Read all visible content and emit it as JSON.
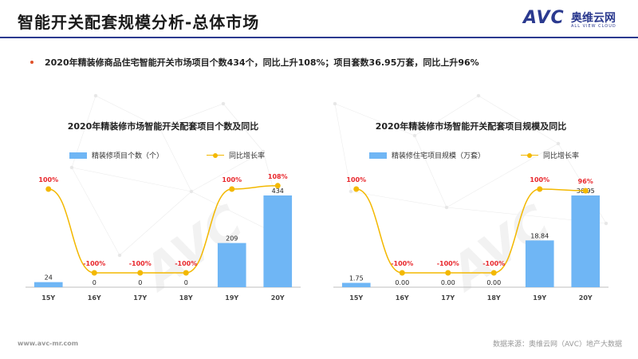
{
  "header": {
    "title": "智能开关配套规模分析-总体市场",
    "logo_avc": "AVC",
    "logo_cn": "奥维云网",
    "logo_sub": "ALL VIEW CLOUD"
  },
  "summary": "2020年精装修商品住宅智能开关市场项目个数434个，同比上升108%；项目套数36.95万套，同比上升96%",
  "colors": {
    "bar": "#6fb6f5",
    "line": "#f3b800",
    "rate_label": "#e8262b",
    "accent": "#2b3a8f"
  },
  "chart_data": [
    {
      "type": "bar",
      "title": "2020年精装修市场智能开关配套项目个数及同比",
      "categories": [
        "15Y",
        "16Y",
        "17Y",
        "18Y",
        "19Y",
        "20Y"
      ],
      "series": [
        {
          "name": "精装修项目个数（个）",
          "type": "bar",
          "values": [
            24,
            0,
            0,
            0,
            209,
            434
          ],
          "labels": [
            "24",
            "0",
            "0",
            "0",
            "209",
            "434"
          ]
        },
        {
          "name": "同比增长率",
          "type": "line",
          "values": [
            100,
            -100,
            -100,
            -100,
            100,
            108
          ],
          "labels": [
            "100%",
            "-100%",
            "-100%",
            "-100%",
            "100%",
            "108%"
          ]
        }
      ],
      "legend": "top",
      "grid": false
    },
    {
      "type": "bar",
      "title": "2020年精装修市场智能开关配套项目规模及同比",
      "categories": [
        "15Y",
        "16Y",
        "17Y",
        "18Y",
        "19Y",
        "20Y"
      ],
      "series": [
        {
          "name": "精装修住宅项目规模（万套）",
          "type": "bar",
          "values": [
            1.75,
            0.0,
            0.0,
            0.0,
            18.84,
            36.95
          ],
          "labels": [
            "1.75",
            "0.00",
            "0.00",
            "0.00",
            "18.84",
            "36.95"
          ]
        },
        {
          "name": "同比增长率",
          "type": "line",
          "values": [
            100,
            -100,
            -100,
            -100,
            100,
            96
          ],
          "labels": [
            "100%",
            "-100%",
            "-100%",
            "-100%",
            "100%",
            "96%"
          ]
        }
      ],
      "legend": "top",
      "grid": false
    }
  ],
  "footer": {
    "url": "www.avc-mr.com",
    "source": "数据来源：奥维云网（AVC）地产大数据"
  }
}
